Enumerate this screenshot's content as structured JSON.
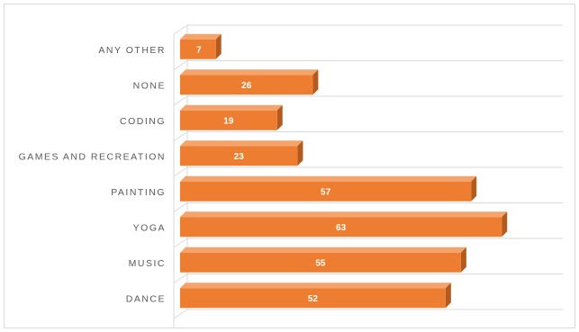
{
  "chart_data": {
    "type": "bar",
    "orientation": "horizontal",
    "style": "3d",
    "categories": [
      "ANY OTHER",
      "NONE",
      "CODING",
      "GAMES AND RECREATION",
      "PAINTING",
      "YOGA",
      "MUSIC",
      "DANCE"
    ],
    "values": [
      7,
      26,
      19,
      23,
      57,
      63,
      55,
      52
    ],
    "title": "",
    "xlabel": "",
    "ylabel": "",
    "xlim": [
      0,
      70
    ],
    "grid": true,
    "legend": "none",
    "colors": {
      "bar_front": "#ED7D31",
      "bar_top": "#F4A36C",
      "bar_side": "#B35A1E",
      "grid": "#D9D9D9",
      "label": "#595959",
      "value_label": "#FFFFFF"
    }
  }
}
